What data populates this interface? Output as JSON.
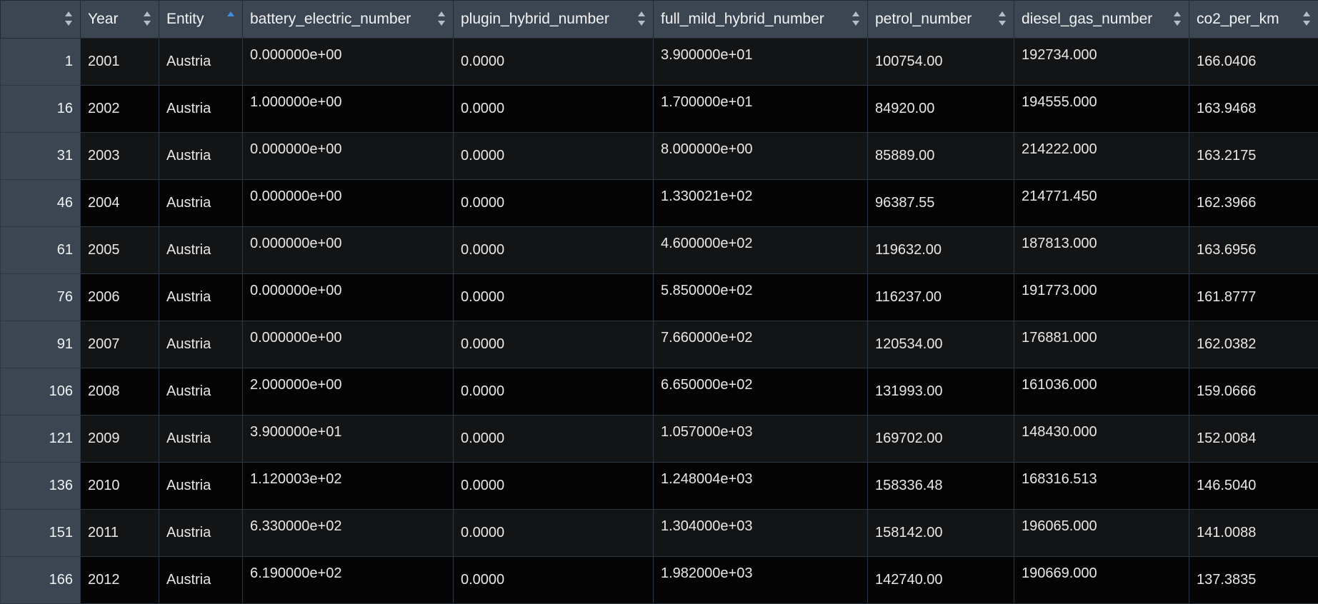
{
  "columns": [
    "",
    "Year",
    "Entity",
    "battery_electric_number",
    "plugin_hybrid_number",
    "full_mild_hybrid_number",
    "petrol_number",
    "diesel_gas_number",
    "co2_per_km"
  ],
  "sort": {
    "column": "Entity",
    "direction": "ascending"
  },
  "rows": [
    [
      "1",
      "2001",
      "Austria",
      "0.000000e+00",
      "0.0000",
      "3.900000e+01",
      "100754.00",
      "192734.000",
      "166.0406"
    ],
    [
      "16",
      "2002",
      "Austria",
      "1.000000e+00",
      "0.0000",
      "1.700000e+01",
      "84920.00",
      "194555.000",
      "163.9468"
    ],
    [
      "31",
      "2003",
      "Austria",
      "0.000000e+00",
      "0.0000",
      "8.000000e+00",
      "85889.00",
      "214222.000",
      "163.2175"
    ],
    [
      "46",
      "2004",
      "Austria",
      "0.000000e+00",
      "0.0000",
      "1.330021e+02",
      "96387.55",
      "214771.450",
      "162.3966"
    ],
    [
      "61",
      "2005",
      "Austria",
      "0.000000e+00",
      "0.0000",
      "4.600000e+02",
      "119632.00",
      "187813.000",
      "163.6956"
    ],
    [
      "76",
      "2006",
      "Austria",
      "0.000000e+00",
      "0.0000",
      "5.850000e+02",
      "116237.00",
      "191773.000",
      "161.8777"
    ],
    [
      "91",
      "2007",
      "Austria",
      "0.000000e+00",
      "0.0000",
      "7.660000e+02",
      "120534.00",
      "176881.000",
      "162.0382"
    ],
    [
      "106",
      "2008",
      "Austria",
      "2.000000e+00",
      "0.0000",
      "6.650000e+02",
      "131993.00",
      "161036.000",
      "159.0666"
    ],
    [
      "121",
      "2009",
      "Austria",
      "3.900000e+01",
      "0.0000",
      "1.057000e+03",
      "169702.00",
      "148430.000",
      "152.0084"
    ],
    [
      "136",
      "2010",
      "Austria",
      "1.120003e+02",
      "0.0000",
      "1.248004e+03",
      "158336.48",
      "168316.513",
      "146.5040"
    ],
    [
      "151",
      "2011",
      "Austria",
      "6.330000e+02",
      "0.0000",
      "1.304000e+03",
      "158142.00",
      "196065.000",
      "141.0088"
    ],
    [
      "166",
      "2012",
      "Austria",
      "6.190000e+02",
      "0.0000",
      "1.982000e+03",
      "142740.00",
      "190669.000",
      "137.3835"
    ]
  ]
}
